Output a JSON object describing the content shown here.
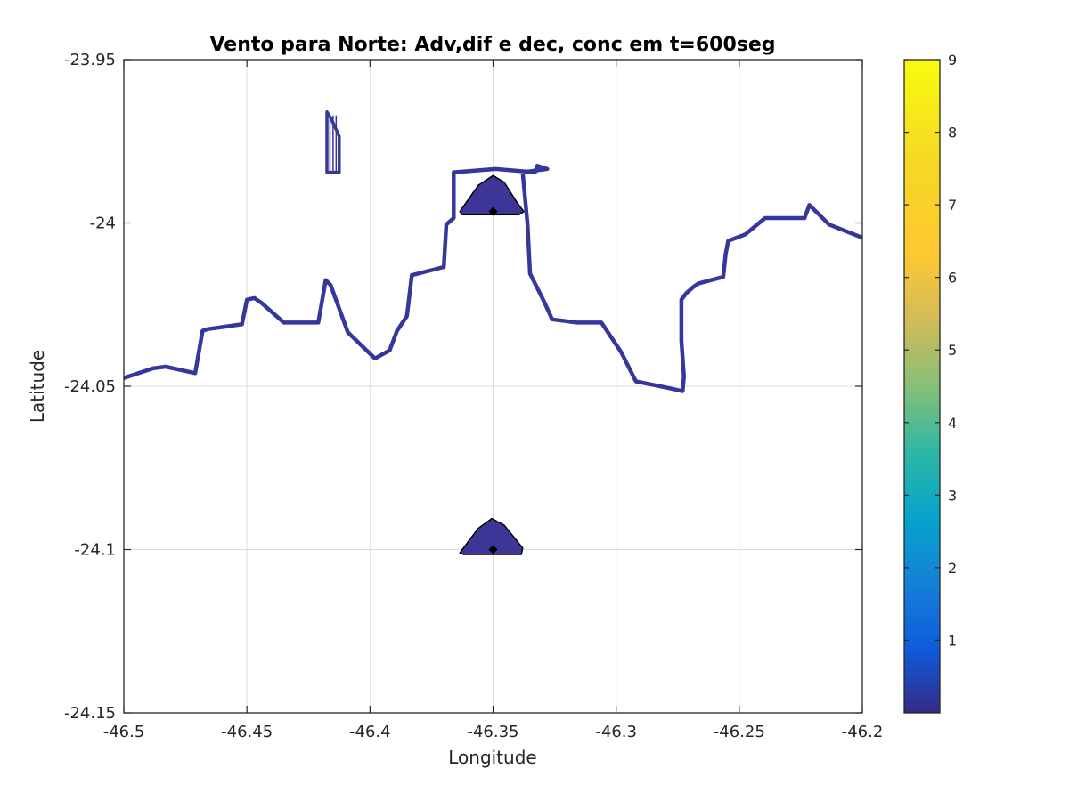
{
  "chart_data": {
    "type": "contour",
    "title": "Vento para Norte: Adv,dif e dec, conc em t=600seg",
    "xlabel": "Longitude",
    "ylabel": "Latitude",
    "xlim": [
      -46.5,
      -46.2
    ],
    "ylim": [
      -24.15,
      -23.95
    ],
    "x_ticks": [
      -46.5,
      -46.45,
      -46.4,
      -46.35,
      -46.3,
      -46.25,
      -46.2
    ],
    "x_tick_labels": [
      "-46.5",
      "-46.45",
      "-46.4",
      "-46.35",
      "-46.3",
      "-46.25",
      "-46.2"
    ],
    "y_ticks": [
      -23.95,
      -24.0,
      -24.05,
      -24.1,
      -24.15
    ],
    "y_tick_labels": [
      "-23.95",
      "-24",
      "-24.05",
      "-24.1",
      "-24.15"
    ],
    "grid": true,
    "colormap": "parula",
    "colorbar": {
      "range": [
        0,
        9
      ],
      "ticks": [
        1,
        2,
        3,
        4,
        5,
        6,
        7,
        8,
        9
      ],
      "tick_labels": [
        "1",
        "2",
        "3",
        "4",
        "5",
        "6",
        "7",
        "8",
        "9"
      ]
    },
    "coastline_color": "#35379a",
    "coastline": [
      [
        -46.5,
        -24.0475
      ],
      [
        -46.488,
        -24.0445
      ],
      [
        -46.483,
        -24.044
      ],
      [
        -46.471,
        -24.046
      ],
      [
        -46.468,
        -24.033
      ],
      [
        -46.466,
        -24.0325
      ],
      [
        -46.452,
        -24.031
      ],
      [
        -46.45,
        -24.0235
      ],
      [
        -46.447,
        -24.023
      ],
      [
        -46.444,
        -24.0245
      ],
      [
        -46.435,
        -24.0305
      ],
      [
        -46.421,
        -24.0305
      ],
      [
        -46.418,
        -24.0175
      ],
      [
        -46.416,
        -24.019
      ],
      [
        -46.409,
        -24.0335
      ],
      [
        -46.398,
        -24.0415
      ],
      [
        -46.392,
        -24.039
      ],
      [
        -46.389,
        -24.033
      ],
      [
        -46.385,
        -24.0285
      ],
      [
        -46.383,
        -24.016
      ],
      [
        -46.37,
        -24.0135
      ],
      [
        -46.369,
        -24.0005
      ],
      [
        -46.366,
        -23.9985
      ],
      [
        -46.366,
        -23.9845
      ],
      [
        -46.349,
        -23.9835
      ],
      [
        -46.333,
        -23.9845
      ],
      [
        -46.332,
        -23.9825
      ],
      [
        -46.328,
        -23.9835
      ],
      [
        -46.338,
        -23.9845
      ],
      [
        -46.336,
        -24.0005
      ],
      [
        -46.335,
        -24.0155
      ],
      [
        -46.329,
        -24.0245
      ],
      [
        -46.326,
        -24.0295
      ],
      [
        -46.316,
        -24.0305
      ],
      [
        -46.306,
        -24.0305
      ],
      [
        -46.298,
        -24.0395
      ],
      [
        -46.292,
        -24.0485
      ],
      [
        -46.279,
        -24.0505
      ],
      [
        -46.273,
        -24.0515
      ],
      [
        -46.2725,
        -24.047
      ],
      [
        -46.2735,
        -24.036
      ],
      [
        -46.2735,
        -24.0235
      ],
      [
        -46.2715,
        -24.0215
      ],
      [
        -46.2685,
        -24.0195
      ],
      [
        -46.2665,
        -24.0185
      ],
      [
        -46.2565,
        -24.0165
      ],
      [
        -46.2555,
        -24.0095
      ],
      [
        -46.2545,
        -24.0055
      ],
      [
        -46.251,
        -24.0045
      ],
      [
        -46.2475,
        -24.0035
      ],
      [
        -46.2395,
        -23.9985
      ],
      [
        -46.2235,
        -23.9985
      ],
      [
        -46.2215,
        -23.9945
      ],
      [
        -46.2135,
        -24.0005
      ],
      [
        -46.2,
        -24.0045
      ]
    ],
    "islands": [
      [
        [
          -46.4175,
          -23.966
        ],
        [
          -46.4175,
          -23.9845
        ],
        [
          -46.4125,
          -23.9845
        ],
        [
          -46.4125,
          -23.9735
        ],
        [
          -46.4155,
          -23.9685
        ],
        [
          -46.4175,
          -23.966
        ]
      ]
    ],
    "contour_patches": [
      {
        "level": 0.1,
        "outline": [
          [
            -46.3635,
            -23.9965
          ],
          [
            -46.356,
            -23.9885
          ],
          [
            -46.35,
            -23.9855
          ],
          [
            -46.3455,
            -23.9875
          ],
          [
            -46.3405,
            -23.9935
          ],
          [
            -46.3375,
            -23.9965
          ],
          [
            -46.3395,
            -23.9975
          ],
          [
            -46.3625,
            -23.9975
          ]
        ],
        "peak": [
          -46.35,
          -23.9965
        ]
      },
      {
        "level": 0.1,
        "outline": [
          [
            -46.3635,
            -24.101
          ],
          [
            -46.356,
            -24.0935
          ],
          [
            -46.3505,
            -24.0905
          ],
          [
            -46.3455,
            -24.0925
          ],
          [
            -46.338,
            -24.0995
          ],
          [
            -46.3385,
            -24.1015
          ],
          [
            -46.362,
            -24.1015
          ]
        ],
        "peak": [
          -46.35,
          -24.1
        ]
      }
    ]
  }
}
